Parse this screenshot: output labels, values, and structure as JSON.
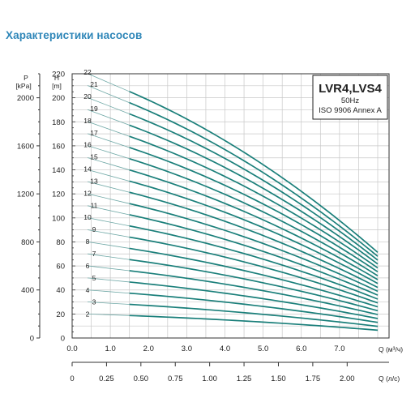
{
  "page": {
    "title": "Характеристики насосов"
  },
  "chart_data": {
    "type": "line",
    "title": "LVR4,LVS4",
    "subtitle": [
      "50Hz",
      "ISO 9906 Annex A"
    ],
    "left_axis": {
      "label_lines": [
        "P",
        "[kPa]"
      ],
      "ticks": [
        "0",
        "400",
        "800",
        "1200",
        "1600",
        "2000"
      ],
      "ylim": [
        0,
        2200
      ]
    },
    "y_axis": {
      "label_lines": [
        "H",
        "[m]"
      ],
      "ticks": [
        "0",
        "20",
        "40",
        "60",
        "80",
        "100",
        "120",
        "140",
        "160",
        "180",
        "200",
        "220"
      ],
      "ylim": [
        0,
        220
      ]
    },
    "x_axis": {
      "label": "Q (м³/ч)",
      "ticks": [
        "0.0",
        "1.0",
        "2.0",
        "3.0",
        "4.0",
        "5.0",
        "6.0",
        "7.0"
      ],
      "xlim": [
        0,
        8
      ]
    },
    "x_axis_secondary": {
      "label": "Q (л/с)",
      "ticks": [
        "0",
        "0.25",
        "0.50",
        "0.75",
        "1.00",
        "1.25",
        "1.50",
        "1.75",
        "2.00"
      ]
    },
    "x": [
      0.0,
      1.5,
      8.0
    ],
    "series": [
      {
        "name": "2",
        "values": [
          20.5,
          18.7,
          6.5
        ]
      },
      {
        "name": "3",
        "values": [
          30.8,
          28.0,
          9.7
        ]
      },
      {
        "name": "4",
        "values": [
          41.0,
          37.3,
          13.0
        ]
      },
      {
        "name": "5",
        "values": [
          51.3,
          46.6,
          16.2
        ]
      },
      {
        "name": "6",
        "values": [
          61.6,
          56.0,
          19.5
        ]
      },
      {
        "name": "7",
        "values": [
          71.8,
          65.3,
          22.7
        ]
      },
      {
        "name": "8",
        "values": [
          82.1,
          74.6,
          25.9
        ]
      },
      {
        "name": "9",
        "values": [
          92.3,
          84.0,
          29.2
        ]
      },
      {
        "name": "10",
        "values": [
          102.6,
          93.3,
          32.4
        ]
      },
      {
        "name": "11",
        "values": [
          112.9,
          102.6,
          35.7
        ]
      },
      {
        "name": "12",
        "values": [
          123.1,
          111.9,
          38.9
        ]
      },
      {
        "name": "13",
        "values": [
          133.4,
          121.3,
          42.1
        ]
      },
      {
        "name": "14",
        "values": [
          143.6,
          130.6,
          45.4
        ]
      },
      {
        "name": "15",
        "values": [
          153.9,
          139.9,
          48.6
        ]
      },
      {
        "name": "16",
        "values": [
          164.2,
          149.3,
          51.8
        ]
      },
      {
        "name": "17",
        "values": [
          174.4,
          158.6,
          55.1
        ]
      },
      {
        "name": "18",
        "values": [
          184.7,
          167.9,
          58.3
        ]
      },
      {
        "name": "19",
        "values": [
          194.9,
          177.2,
          61.6
        ]
      },
      {
        "name": "20",
        "values": [
          205.2,
          186.6,
          64.8
        ]
      },
      {
        "name": "21",
        "values": [
          215.5,
          195.9,
          68.0
        ]
      },
      {
        "name": "22",
        "values": [
          225.7,
          205.2,
          71.3
        ]
      }
    ],
    "grid": true,
    "colors": {
      "curve": "#1a7f7a",
      "curve_thin": "#6fa8a6",
      "grid": "#c8c8c8",
      "title": "#2e86b8"
    }
  }
}
